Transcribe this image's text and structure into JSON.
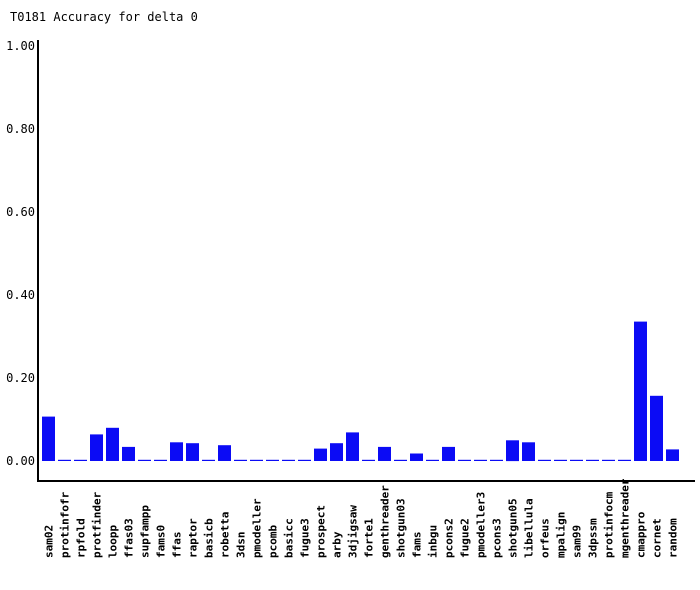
{
  "chart_data": {
    "type": "bar",
    "title": "T0181 Accuracy for delta 0",
    "xlabel": "",
    "ylabel": "",
    "ylim": [
      0,
      1.0
    ],
    "yticks": [
      "0.00",
      "0.20",
      "0.40",
      "0.60",
      "0.80",
      "1.00"
    ],
    "grid": false,
    "legend": "none",
    "bar_color": "#0b0bf5",
    "categories": [
      "sam02",
      "protinfofr",
      "rpfold",
      "protfinder",
      "loopp",
      "ffas03",
      "supfampp",
      "fams0",
      "ffas",
      "raptor",
      "basicb",
      "robetta",
      "3dsn",
      "pmodeller",
      "pcomb",
      "basicc",
      "fugue3",
      "prospect",
      "arby",
      "3djigsaw",
      "forte1",
      "genthreader",
      "shotgun03",
      "fams",
      "inbgu",
      "pcons2",
      "fugue2",
      "pmodeller3",
      "pcons3",
      "shotgun05",
      "libellula",
      "orfeus",
      "mpalign",
      "sam99",
      "3dpssm",
      "protinfocm",
      "mgenthreader",
      "cmappro",
      "cornet",
      "random"
    ],
    "values": [
      0.107,
      0.003,
      0.003,
      0.064,
      0.08,
      0.034,
      0.003,
      0.003,
      0.045,
      0.043,
      0.003,
      0.038,
      0.003,
      0.003,
      0.003,
      0.003,
      0.003,
      0.03,
      0.043,
      0.069,
      0.003,
      0.034,
      0.003,
      0.018,
      0.003,
      0.034,
      0.003,
      0.003,
      0.003,
      0.05,
      0.045,
      0.003,
      0.003,
      0.003,
      0.003,
      0.003,
      0.003,
      0.336,
      0.157,
      0.028
    ]
  }
}
